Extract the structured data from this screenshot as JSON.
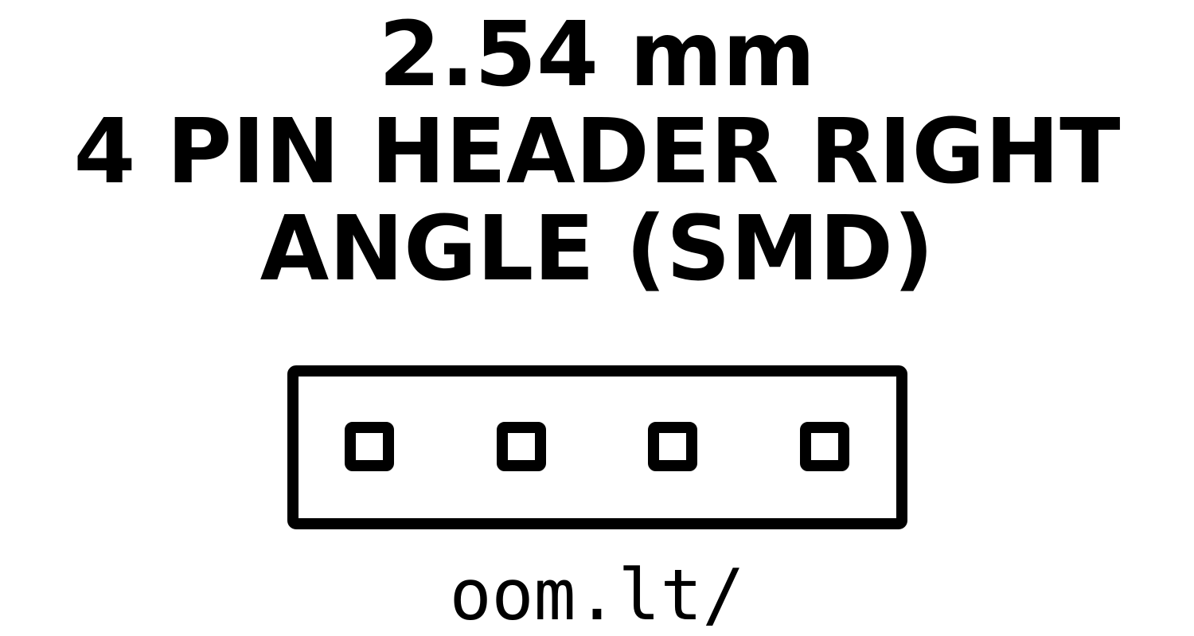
{
  "title": {
    "line1": "2.54 mm",
    "line2": "4 PIN HEADER RIGHT",
    "line3": "ANGLE (SMD)"
  },
  "diagram": {
    "component": "header-outline",
    "pin_count": 4,
    "stroke_color": "#000000",
    "fill_color": "#ffffff"
  },
  "footer": {
    "url": "oom.lt/"
  }
}
